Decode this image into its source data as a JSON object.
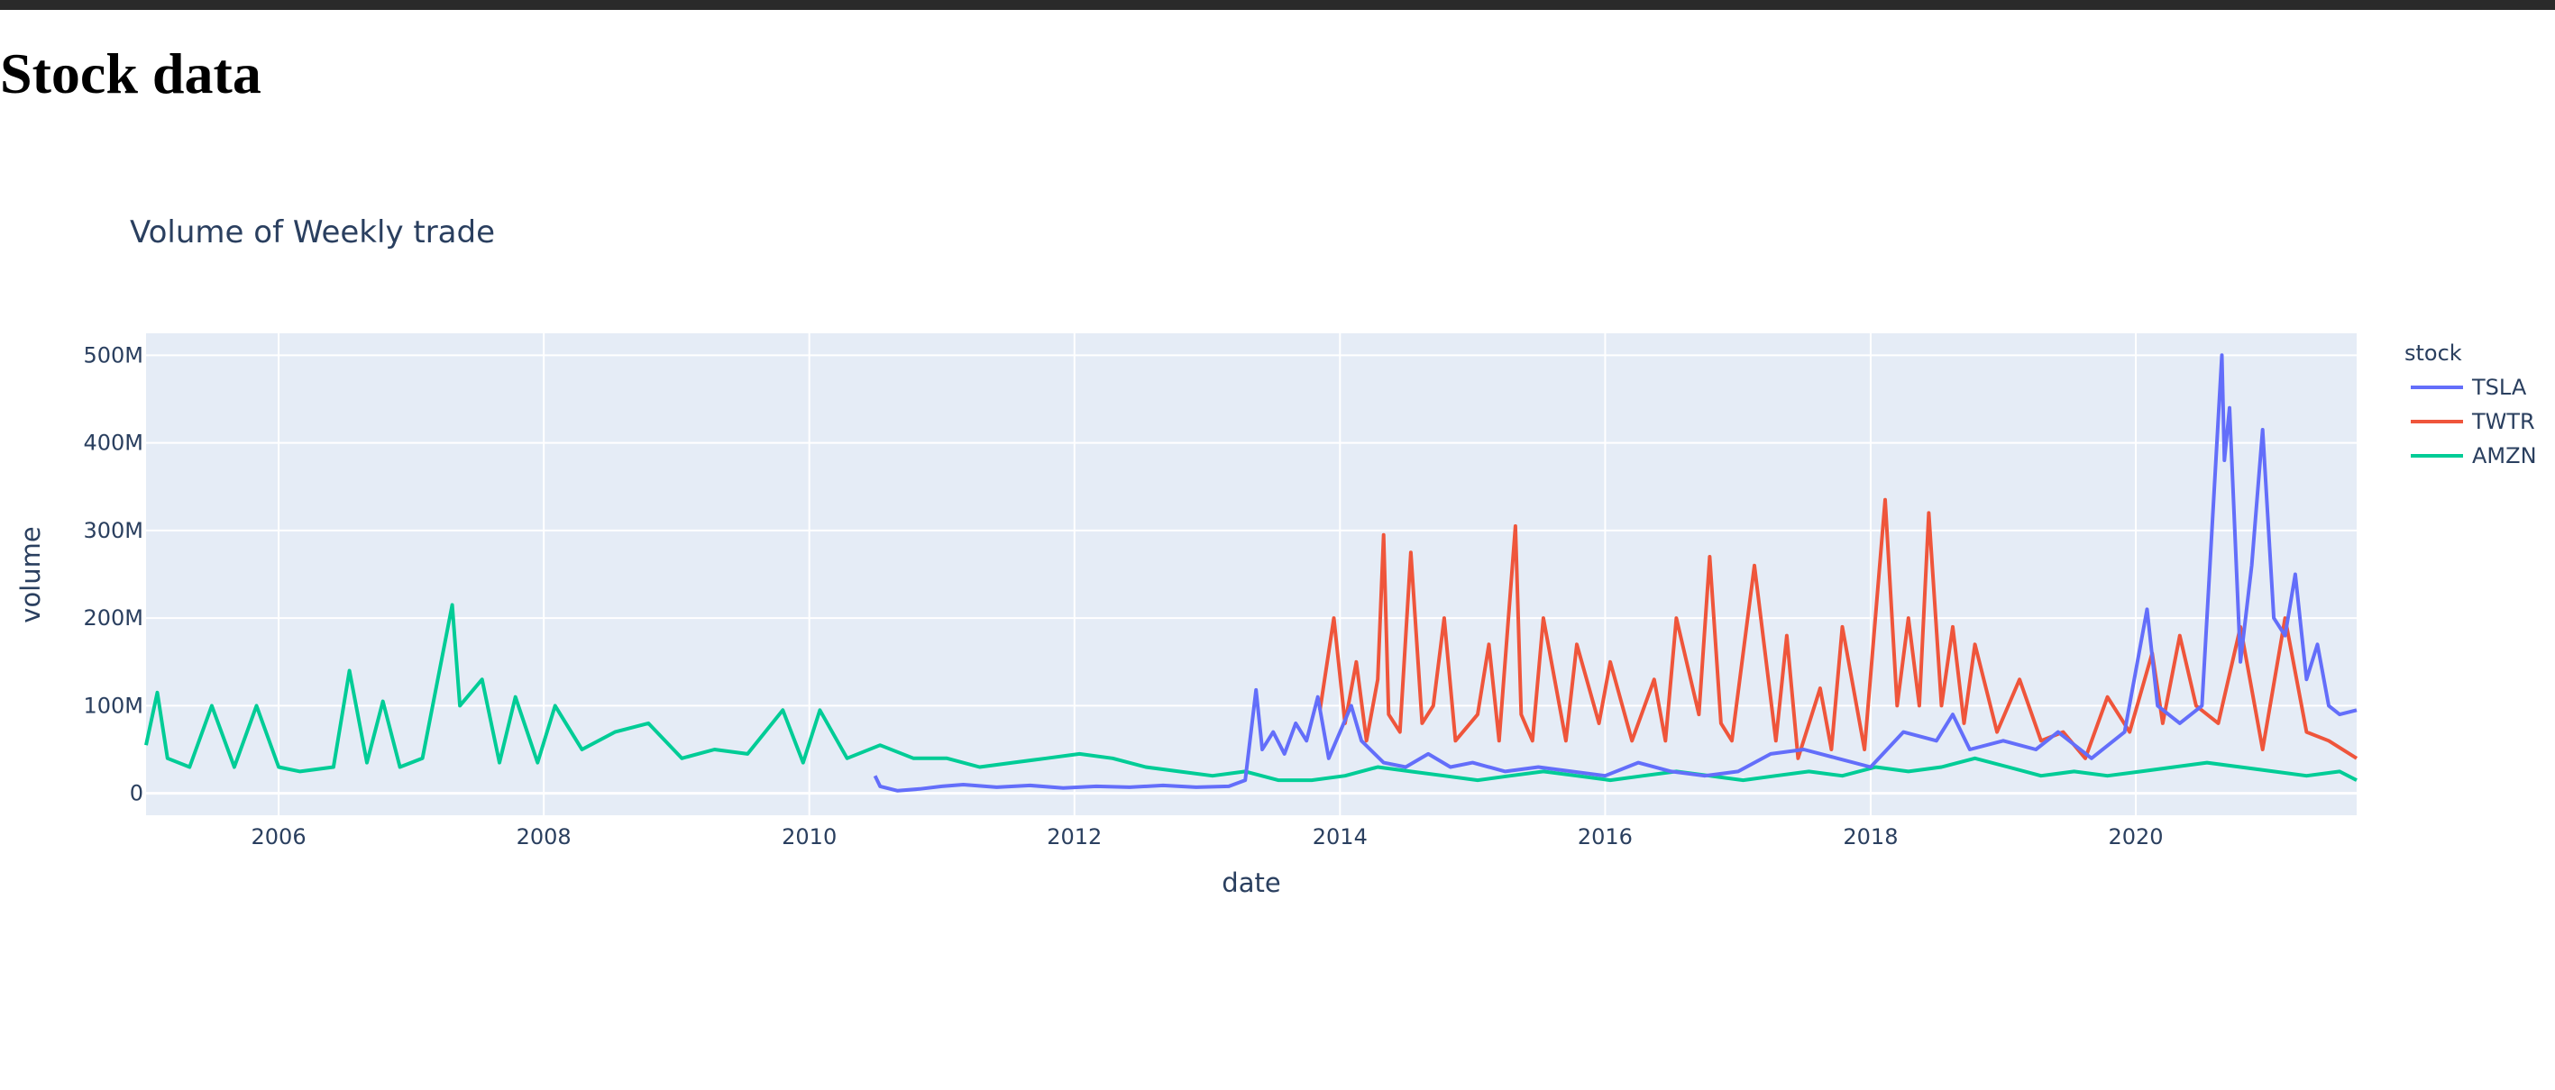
{
  "page": {
    "heading": "Stock data"
  },
  "chart_data": {
    "type": "line",
    "title": "Volume of Weekly trade",
    "xlabel": "date",
    "ylabel": "volume",
    "x_range": [
      "2005-01-01",
      "2021-08-31"
    ],
    "ylim": [
      -25000000,
      525000000
    ],
    "x_ticks": [
      "2006",
      "2008",
      "2010",
      "2012",
      "2014",
      "2016",
      "2018",
      "2020"
    ],
    "y_ticks": [
      {
        "value": 0,
        "label": "0"
      },
      {
        "value": 100000000,
        "label": "100M"
      },
      {
        "value": 200000000,
        "label": "200M"
      },
      {
        "value": 300000000,
        "label": "300M"
      },
      {
        "value": 400000000,
        "label": "400M"
      },
      {
        "value": 500000000,
        "label": "500M"
      }
    ],
    "grid": true,
    "plot_background": "#e5ecf6",
    "legend": {
      "title": "stock",
      "placement": "right"
    },
    "series": [
      {
        "name": "TSLA",
        "color": "#636efa",
        "points": [
          [
            "2010-07-01",
            20
          ],
          [
            "2010-07-15",
            8
          ],
          [
            "2010-09-01",
            3
          ],
          [
            "2010-11-01",
            5
          ],
          [
            "2011-01-01",
            8
          ],
          [
            "2011-03-01",
            10
          ],
          [
            "2011-06-01",
            7
          ],
          [
            "2011-09-01",
            9
          ],
          [
            "2011-12-01",
            6
          ],
          [
            "2012-03-01",
            8
          ],
          [
            "2012-06-01",
            7
          ],
          [
            "2012-09-01",
            9
          ],
          [
            "2012-12-01",
            7
          ],
          [
            "2013-03-01",
            8
          ],
          [
            "2013-04-15",
            15
          ],
          [
            "2013-05-15",
            118
          ],
          [
            "2013-06-01",
            50
          ],
          [
            "2013-07-01",
            70
          ],
          [
            "2013-08-01",
            45
          ],
          [
            "2013-09-01",
            80
          ],
          [
            "2013-10-01",
            60
          ],
          [
            "2013-11-01",
            110
          ],
          [
            "2013-12-01",
            40
          ],
          [
            "2014-02-01",
            100
          ],
          [
            "2014-03-01",
            60
          ],
          [
            "2014-05-01",
            35
          ],
          [
            "2014-07-01",
            30
          ],
          [
            "2014-09-01",
            45
          ],
          [
            "2014-11-01",
            30
          ],
          [
            "2015-01-01",
            35
          ],
          [
            "2015-04-01",
            25
          ],
          [
            "2015-07-01",
            30
          ],
          [
            "2015-10-01",
            25
          ],
          [
            "2016-01-01",
            20
          ],
          [
            "2016-04-01",
            35
          ],
          [
            "2016-07-01",
            25
          ],
          [
            "2016-10-01",
            20
          ],
          [
            "2017-01-01",
            25
          ],
          [
            "2017-04-01",
            45
          ],
          [
            "2017-07-01",
            50
          ],
          [
            "2017-10-01",
            40
          ],
          [
            "2018-01-01",
            30
          ],
          [
            "2018-04-01",
            70
          ],
          [
            "2018-07-01",
            60
          ],
          [
            "2018-08-15",
            90
          ],
          [
            "2018-10-01",
            50
          ],
          [
            "2019-01-01",
            60
          ],
          [
            "2019-04-01",
            50
          ],
          [
            "2019-06-01",
            70
          ],
          [
            "2019-09-01",
            40
          ],
          [
            "2019-12-01",
            70
          ],
          [
            "2020-02-01",
            210
          ],
          [
            "2020-03-01",
            100
          ],
          [
            "2020-05-01",
            80
          ],
          [
            "2020-07-01",
            100
          ],
          [
            "2020-08-25",
            500
          ],
          [
            "2020-09-01",
            380
          ],
          [
            "2020-09-15",
            440
          ],
          [
            "2020-10-15",
            150
          ],
          [
            "2020-11-15",
            260
          ],
          [
            "2020-12-15",
            415
          ],
          [
            "2021-01-15",
            200
          ],
          [
            "2021-02-15",
            180
          ],
          [
            "2021-03-15",
            250
          ],
          [
            "2021-04-15",
            130
          ],
          [
            "2021-05-15",
            170
          ],
          [
            "2021-06-15",
            100
          ],
          [
            "2021-07-15",
            90
          ],
          [
            "2021-08-31",
            95
          ]
        ]
      },
      {
        "name": "TWTR",
        "color": "#ef553b",
        "points": [
          [
            "2013-11-07",
            95
          ],
          [
            "2013-12-15",
            200
          ],
          [
            "2014-01-15",
            80
          ],
          [
            "2014-02-15",
            150
          ],
          [
            "2014-03-15",
            60
          ],
          [
            "2014-04-15",
            130
          ],
          [
            "2014-05-01",
            295
          ],
          [
            "2014-05-15",
            90
          ],
          [
            "2014-06-15",
            70
          ],
          [
            "2014-07-15",
            275
          ],
          [
            "2014-08-15",
            80
          ],
          [
            "2014-09-15",
            100
          ],
          [
            "2014-10-15",
            200
          ],
          [
            "2014-11-15",
            60
          ],
          [
            "2015-01-15",
            90
          ],
          [
            "2015-02-15",
            170
          ],
          [
            "2015-03-15",
            60
          ],
          [
            "2015-04-29",
            305
          ],
          [
            "2015-05-15",
            90
          ],
          [
            "2015-06-15",
            60
          ],
          [
            "2015-07-15",
            200
          ],
          [
            "2015-09-15",
            60
          ],
          [
            "2015-10-15",
            170
          ],
          [
            "2015-12-15",
            80
          ],
          [
            "2016-01-15",
            150
          ],
          [
            "2016-03-15",
            60
          ],
          [
            "2016-05-15",
            130
          ],
          [
            "2016-06-15",
            60
          ],
          [
            "2016-07-15",
            200
          ],
          [
            "2016-09-15",
            90
          ],
          [
            "2016-10-15",
            270
          ],
          [
            "2016-11-15",
            80
          ],
          [
            "2016-12-15",
            60
          ],
          [
            "2017-02-15",
            260
          ],
          [
            "2017-04-15",
            60
          ],
          [
            "2017-05-15",
            180
          ],
          [
            "2017-06-15",
            40
          ],
          [
            "2017-08-15",
            120
          ],
          [
            "2017-09-15",
            50
          ],
          [
            "2017-10-15",
            190
          ],
          [
            "2017-12-15",
            50
          ],
          [
            "2018-02-10",
            335
          ],
          [
            "2018-03-15",
            100
          ],
          [
            "2018-04-15",
            200
          ],
          [
            "2018-05-15",
            100
          ],
          [
            "2018-06-10",
            320
          ],
          [
            "2018-07-15",
            100
          ],
          [
            "2018-08-15",
            190
          ],
          [
            "2018-09-15",
            80
          ],
          [
            "2018-10-15",
            170
          ],
          [
            "2018-12-15",
            70
          ],
          [
            "2019-02-15",
            130
          ],
          [
            "2019-04-15",
            60
          ],
          [
            "2019-06-15",
            70
          ],
          [
            "2019-08-15",
            40
          ],
          [
            "2019-10-15",
            110
          ],
          [
            "2019-12-15",
            70
          ],
          [
            "2020-02-15",
            160
          ],
          [
            "2020-03-15",
            80
          ],
          [
            "2020-05-01",
            180
          ],
          [
            "2020-06-15",
            100
          ],
          [
            "2020-08-15",
            80
          ],
          [
            "2020-10-15",
            190
          ],
          [
            "2020-12-15",
            50
          ],
          [
            "2021-02-15",
            200
          ],
          [
            "2021-04-15",
            70
          ],
          [
            "2021-06-15",
            60
          ],
          [
            "2021-08-31",
            40
          ]
        ]
      },
      {
        "name": "AMZN",
        "color": "#00cc96",
        "points": [
          [
            "2005-01-01",
            55
          ],
          [
            "2005-02-01",
            115
          ],
          [
            "2005-03-01",
            40
          ],
          [
            "2005-05-01",
            30
          ],
          [
            "2005-07-01",
            100
          ],
          [
            "2005-09-01",
            30
          ],
          [
            "2005-11-01",
            100
          ],
          [
            "2006-01-01",
            30
          ],
          [
            "2006-03-01",
            25
          ],
          [
            "2006-06-01",
            30
          ],
          [
            "2006-07-15",
            140
          ],
          [
            "2006-09-01",
            35
          ],
          [
            "2006-10-15",
            105
          ],
          [
            "2006-12-01",
            30
          ],
          [
            "2007-02-01",
            40
          ],
          [
            "2007-04-24",
            215
          ],
          [
            "2007-05-15",
            100
          ],
          [
            "2007-07-15",
            130
          ],
          [
            "2007-09-01",
            35
          ],
          [
            "2007-10-15",
            110
          ],
          [
            "2007-12-15",
            35
          ],
          [
            "2008-02-01",
            100
          ],
          [
            "2008-04-15",
            50
          ],
          [
            "2008-07-15",
            70
          ],
          [
            "2008-10-15",
            80
          ],
          [
            "2009-01-15",
            40
          ],
          [
            "2009-04-15",
            50
          ],
          [
            "2009-07-15",
            45
          ],
          [
            "2009-10-20",
            95
          ],
          [
            "2009-12-15",
            35
          ],
          [
            "2010-01-30",
            95
          ],
          [
            "2010-04-15",
            40
          ],
          [
            "2010-07-15",
            55
          ],
          [
            "2010-10-15",
            40
          ],
          [
            "2011-01-15",
            40
          ],
          [
            "2011-04-15",
            30
          ],
          [
            "2011-07-15",
            35
          ],
          [
            "2011-10-15",
            40
          ],
          [
            "2012-01-15",
            45
          ],
          [
            "2012-04-15",
            40
          ],
          [
            "2012-07-15",
            30
          ],
          [
            "2012-10-15",
            25
          ],
          [
            "2013-01-15",
            20
          ],
          [
            "2013-04-15",
            25
          ],
          [
            "2013-07-15",
            15
          ],
          [
            "2013-10-15",
            15
          ],
          [
            "2014-01-15",
            20
          ],
          [
            "2014-04-15",
            30
          ],
          [
            "2014-07-15",
            25
          ],
          [
            "2014-10-15",
            20
          ],
          [
            "2015-01-15",
            15
          ],
          [
            "2015-04-15",
            20
          ],
          [
            "2015-07-15",
            25
          ],
          [
            "2015-10-15",
            20
          ],
          [
            "2016-01-15",
            15
          ],
          [
            "2016-04-15",
            20
          ],
          [
            "2016-07-15",
            25
          ],
          [
            "2016-10-15",
            20
          ],
          [
            "2017-01-15",
            15
          ],
          [
            "2017-04-15",
            20
          ],
          [
            "2017-07-15",
            25
          ],
          [
            "2017-10-15",
            20
          ],
          [
            "2018-01-15",
            30
          ],
          [
            "2018-04-15",
            25
          ],
          [
            "2018-07-15",
            30
          ],
          [
            "2018-10-15",
            40
          ],
          [
            "2019-01-15",
            30
          ],
          [
            "2019-04-15",
            20
          ],
          [
            "2019-07-15",
            25
          ],
          [
            "2019-10-15",
            20
          ],
          [
            "2020-01-15",
            25
          ],
          [
            "2020-04-15",
            30
          ],
          [
            "2020-07-15",
            35
          ],
          [
            "2020-10-15",
            30
          ],
          [
            "2021-01-15",
            25
          ],
          [
            "2021-04-15",
            20
          ],
          [
            "2021-07-15",
            25
          ],
          [
            "2021-08-31",
            15
          ]
        ]
      }
    ]
  }
}
